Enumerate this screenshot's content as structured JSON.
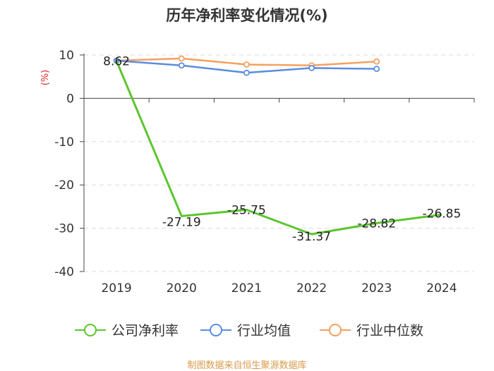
{
  "chart_data": {
    "type": "line",
    "title": "历年净利率变化情况(%)",
    "ylabel": "(%)",
    "xlabel": "",
    "categories": [
      "2019",
      "2020",
      "2021",
      "2022",
      "2023",
      "2024"
    ],
    "ylim": [
      -40,
      10
    ],
    "yticks": [
      10,
      0,
      -10,
      -20,
      -30,
      -40
    ],
    "series": [
      {
        "name": "公司净利率",
        "color": "#5cc52e",
        "values": [
          8.62,
          -27.19,
          -25.75,
          -31.37,
          -28.82,
          -26.85
        ],
        "labels": [
          "8.62",
          "-27.19",
          "-25.75",
          "-31.37",
          "-28.82",
          "-26.85"
        ]
      },
      {
        "name": "行业均值",
        "color": "#5b8ce0",
        "values": [
          8.7,
          7.6,
          5.9,
          7.0,
          6.8,
          null
        ]
      },
      {
        "name": "行业中位数",
        "color": "#f5a05f",
        "values": [
          8.7,
          9.2,
          7.8,
          7.6,
          8.5,
          null
        ]
      }
    ],
    "grid": "dashed horizontal",
    "legend": "bottom"
  },
  "source": "制图数据来自恒生聚源数据库"
}
